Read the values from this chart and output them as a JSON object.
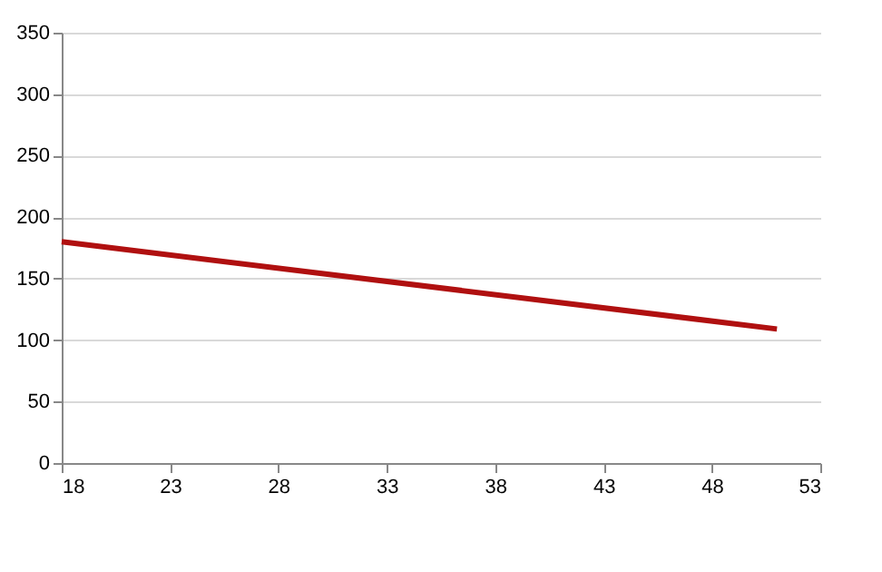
{
  "chart_data": {
    "type": "line",
    "x": [
      18,
      51
    ],
    "series": [
      {
        "color": "#b01010",
        "values": [
          180,
          109
        ]
      }
    ],
    "xlim": [
      18,
      53
    ],
    "xticks": [
      18,
      23,
      28,
      33,
      38,
      43,
      48,
      53
    ],
    "ylim": [
      0,
      350
    ],
    "yticks": [
      0,
      50,
      100,
      150,
      200,
      250,
      300,
      350
    ],
    "grid": "y",
    "legend": false,
    "marker": "none",
    "line_style": "solid"
  }
}
